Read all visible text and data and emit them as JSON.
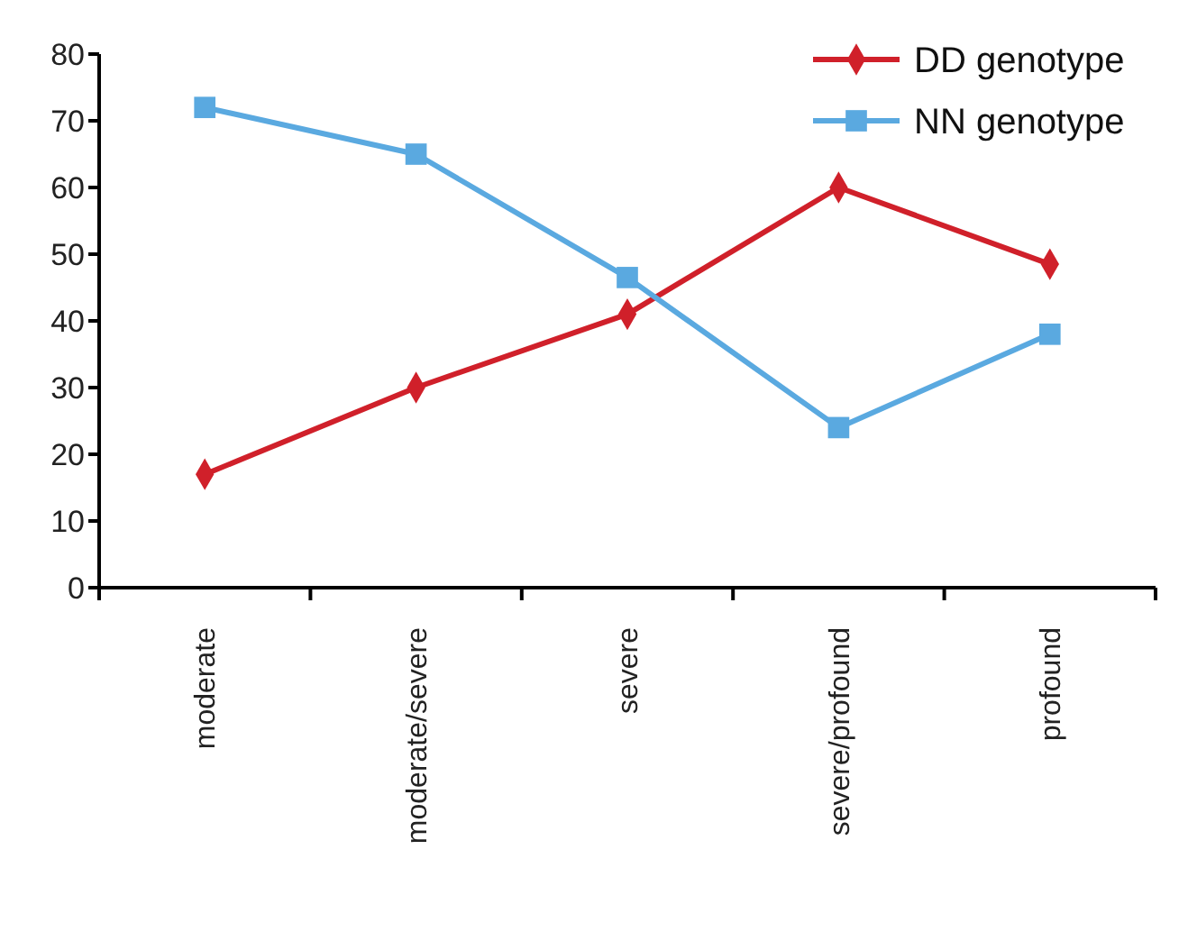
{
  "chart_data": {
    "type": "line",
    "categories": [
      "moderate",
      "moderate/severe",
      "severe",
      "severe/profound",
      "profound"
    ],
    "series": [
      {
        "name": "DD genotype",
        "color": "#d0202a",
        "marker": "diamond",
        "values": [
          17,
          30,
          41,
          60,
          48.5
        ]
      },
      {
        "name": "NN genotype",
        "color": "#5aa9e0",
        "marker": "square",
        "values": [
          72,
          65,
          46.5,
          24,
          38
        ]
      }
    ],
    "ylim": [
      0,
      80
    ],
    "yticks": [
      0,
      10,
      20,
      30,
      40,
      50,
      60,
      70,
      80
    ],
    "grid": false,
    "legend": "top right"
  }
}
